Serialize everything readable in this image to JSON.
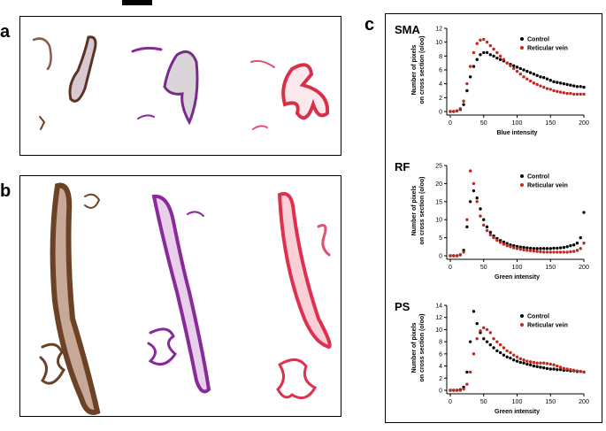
{
  "panel_labels": [
    "a",
    "b",
    "c"
  ],
  "chart_data": [
    {
      "type": "scatter",
      "title": "SMA",
      "xlabel": "Blue intensity",
      "ylabel": [
        "Number of pixels",
        "on cross section (o/oo)"
      ],
      "x": [
        0,
        5,
        10,
        15,
        20,
        25,
        30,
        35,
        40,
        45,
        50,
        55,
        60,
        65,
        70,
        75,
        80,
        85,
        90,
        95,
        100,
        105,
        110,
        115,
        120,
        125,
        130,
        135,
        140,
        145,
        150,
        155,
        160,
        165,
        170,
        175,
        180,
        185,
        190,
        195,
        200
      ],
      "series": [
        {
          "name": "Control",
          "color": "#000000",
          "values": [
            0,
            0,
            0.1,
            0.3,
            1.0,
            3,
            5,
            6.5,
            7.5,
            8.2,
            8.5,
            8.5,
            8.2,
            8,
            7.7,
            7.5,
            7.3,
            7,
            6.8,
            6.6,
            6.4,
            6.2,
            6,
            5.8,
            5.6,
            5.4,
            5.2,
            5,
            4.9,
            4.7,
            4.5,
            4.3,
            4.2,
            4.1,
            4,
            3.9,
            3.8,
            3.7,
            3.6,
            3.6,
            3.5
          ]
        },
        {
          "name": "Reticular vein",
          "color": "#c0281e",
          "values": [
            0,
            0,
            0.1,
            0.4,
            1.5,
            4,
            6.5,
            8.5,
            9.8,
            10.3,
            10.4,
            10,
            9.5,
            9,
            8.5,
            8,
            7.5,
            7,
            6.6,
            6.2,
            5.8,
            5.4,
            5,
            4.7,
            4.4,
            4.1,
            3.9,
            3.7,
            3.5,
            3.3,
            3.2,
            3,
            2.9,
            2.8,
            2.7,
            2.6,
            2.6,
            2.5,
            2.5,
            2.5,
            2.5
          ]
        }
      ],
      "xlim": [
        0,
        200
      ],
      "xticks": [
        0,
        50,
        100,
        150,
        200
      ],
      "ylim": [
        0,
        12
      ],
      "yticks": [
        0,
        2,
        4,
        6,
        8,
        10,
        12
      ],
      "legend": "upper right"
    },
    {
      "type": "scatter",
      "title": "RF",
      "xlabel": "Green intensity",
      "ylabel": [
        "Number of pixels",
        "on cross section (o/oo)"
      ],
      "x": [
        0,
        5,
        10,
        15,
        20,
        25,
        30,
        35,
        40,
        45,
        50,
        55,
        60,
        65,
        70,
        75,
        80,
        85,
        90,
        95,
        100,
        105,
        110,
        115,
        120,
        125,
        130,
        135,
        140,
        145,
        150,
        155,
        160,
        165,
        170,
        175,
        180,
        185,
        190,
        195,
        200
      ],
      "series": [
        {
          "name": "Control",
          "color": "#000000",
          "values": [
            0,
            0,
            0,
            0.3,
            1.5,
            8,
            15,
            18,
            16,
            13,
            10,
            8,
            6.5,
            5.5,
            4.8,
            4.2,
            3.8,
            3.4,
            3,
            2.8,
            2.6,
            2.4,
            2.3,
            2.2,
            2.1,
            2,
            2,
            2,
            2,
            2,
            2,
            2.1,
            2.1,
            2.2,
            2.3,
            2.5,
            2.8,
            3,
            3.5,
            5,
            12
          ]
        },
        {
          "name": "Reticular vein",
          "color": "#c0281e",
          "values": [
            0,
            0,
            0,
            0.2,
            1,
            10,
            23.5,
            20,
            15,
            11,
            8.5,
            7,
            5.8,
            5,
            4.3,
            3.7,
            3.2,
            2.8,
            2.5,
            2.2,
            2,
            1.8,
            1.6,
            1.5,
            1.4,
            1.3,
            1.2,
            1.1,
            1,
            1,
            1,
            1,
            1,
            1,
            1,
            1,
            1.1,
            1.2,
            1.5,
            2,
            3.5
          ]
        }
      ],
      "xlim": [
        0,
        200
      ],
      "xticks": [
        0,
        50,
        100,
        150,
        200
      ],
      "ylim": [
        0,
        25
      ],
      "yticks": [
        0,
        5,
        10,
        15,
        20,
        25
      ],
      "legend": "upper right"
    },
    {
      "type": "scatter",
      "title": "PS",
      "xlabel": "Green intensity",
      "ylabel": [
        "Number of pixels",
        "on cross section (o/oo)"
      ],
      "x": [
        0,
        5,
        10,
        15,
        20,
        25,
        30,
        35,
        40,
        45,
        50,
        55,
        60,
        65,
        70,
        75,
        80,
        85,
        90,
        95,
        100,
        105,
        110,
        115,
        120,
        125,
        130,
        135,
        140,
        145,
        150,
        155,
        160,
        165,
        170,
        175,
        180,
        185,
        190,
        195,
        200
      ],
      "series": [
        {
          "name": "Control",
          "color": "#000000",
          "values": [
            0,
            0,
            0,
            0.1,
            0.5,
            3,
            8,
            13,
            11,
            9.5,
            8.5,
            8,
            7.5,
            7,
            6.5,
            6.2,
            5.8,
            5.5,
            5.3,
            5,
            4.8,
            4.6,
            4.5,
            4.3,
            4.2,
            4,
            3.9,
            3.8,
            3.7,
            3.6,
            3.5,
            3.5,
            3.4,
            3.4,
            3.3,
            3.3,
            3.2,
            3.2,
            3.1,
            3.1,
            3
          ]
        },
        {
          "name": "Reticular vein",
          "color": "#c0281e",
          "values": [
            0,
            0,
            0,
            0,
            0.2,
            1,
            3,
            6,
            8.5,
            9.8,
            10.3,
            10,
            9.5,
            8.5,
            8,
            7.5,
            7,
            6.5,
            6.2,
            5.8,
            5.5,
            5.2,
            5,
            4.8,
            4.7,
            4.6,
            4.5,
            4.5,
            4.5,
            4.4,
            4.3,
            4.2,
            4,
            3.8,
            3.6,
            3.5,
            3.4,
            3.3,
            3.2,
            3.1,
            3
          ]
        }
      ],
      "xlim": [
        0,
        200
      ],
      "xticks": [
        0,
        50,
        100,
        150,
        200
      ],
      "ylim": [
        0,
        14
      ],
      "yticks": [
        0,
        2,
        4,
        6,
        8,
        10,
        12,
        14
      ],
      "legend": "upper right"
    }
  ]
}
